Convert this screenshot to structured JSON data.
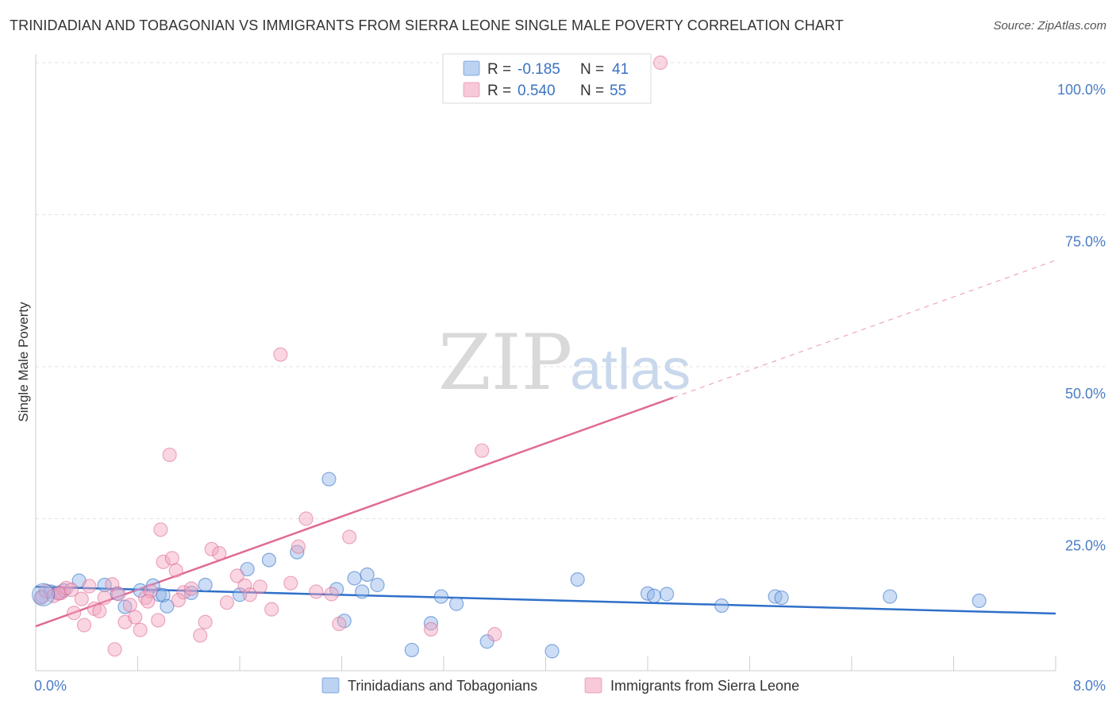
{
  "header": {
    "title": "TRINIDADIAN AND TOBAGONIAN VS IMMIGRANTS FROM SIERRA LEONE SINGLE MALE POVERTY CORRELATION CHART",
    "source": "Source: ZipAtlas.com"
  },
  "watermark": {
    "zip": "ZIP",
    "atlas": "atlas"
  },
  "legend_box": {
    "rows": [
      {
        "r_label": "R =",
        "r_value": "-0.185",
        "n_label": "N =",
        "n_value": "41",
        "color": "#8fb4e8"
      },
      {
        "r_label": "R =",
        "r_value": "0.540",
        "n_label": "N =",
        "n_value": "55",
        "color": "#f2a5bf"
      }
    ]
  },
  "chart_data": {
    "type": "scatter",
    "title": "TRINIDADIAN AND TOBAGONIAN VS IMMIGRANTS FROM SIERRA LEONE SINGLE MALE POVERTY CORRELATION CHART",
    "xlabel": "",
    "ylabel": "Single Male Poverty",
    "xlim": [
      0,
      8
    ],
    "ylim": [
      0,
      100
    ],
    "x_tick_labels": [
      "0.0%",
      "8.0%"
    ],
    "y_ticks": [
      25,
      50,
      75,
      100
    ],
    "y_tick_labels": [
      "25.0%",
      "50.0%",
      "75.0%",
      "100.0%"
    ],
    "grid": true,
    "legend_placement": "bottom",
    "series": [
      {
        "name": "Trinidadians and Tobagonians",
        "color": "#8fb4e8",
        "line_color": "#2f6fc9",
        "trend": {
          "x": [
            0,
            8
          ],
          "y": [
            13.8,
            9.4
          ],
          "dashed_extension": false
        },
        "points": [
          [
            0.05,
            12.2
          ],
          [
            0.12,
            13.0
          ],
          [
            0.18,
            12.8
          ],
          [
            0.22,
            13.2
          ],
          [
            0.34,
            14.8
          ],
          [
            0.54,
            14.1
          ],
          [
            0.64,
            12.7
          ],
          [
            0.82,
            13.2
          ],
          [
            0.92,
            14.0
          ],
          [
            0.97,
            12.5
          ],
          [
            1.0,
            12.4
          ],
          [
            1.03,
            10.6
          ],
          [
            1.22,
            12.8
          ],
          [
            1.33,
            14.1
          ],
          [
            1.66,
            16.7
          ],
          [
            1.83,
            18.2
          ],
          [
            2.05,
            19.5
          ],
          [
            2.3,
            31.5
          ],
          [
            2.36,
            13.4
          ],
          [
            2.42,
            8.2
          ],
          [
            2.5,
            15.2
          ],
          [
            2.56,
            13.0
          ],
          [
            2.6,
            15.8
          ],
          [
            2.68,
            14.1
          ],
          [
            2.95,
            3.4
          ],
          [
            3.1,
            7.8
          ],
          [
            3.18,
            12.2
          ],
          [
            3.3,
            11.0
          ],
          [
            3.54,
            4.8
          ],
          [
            4.05,
            3.2
          ],
          [
            4.25,
            15.0
          ],
          [
            4.8,
            12.7
          ],
          [
            4.85,
            12.3
          ],
          [
            4.95,
            12.6
          ],
          [
            5.38,
            10.7
          ],
          [
            5.8,
            12.2
          ],
          [
            5.85,
            12.0
          ],
          [
            6.7,
            12.2
          ],
          [
            7.4,
            11.5
          ],
          [
            0.7,
            10.5
          ],
          [
            1.6,
            12.5
          ]
        ]
      },
      {
        "name": "Immigrants from Sierra Leone",
        "color": "#f2a5bf",
        "line_color": "#e06a94",
        "trend": {
          "x": [
            0,
            8
          ],
          "y": [
            7.3,
            67.5
          ],
          "dashed_from_x": 5.0
        },
        "points": [
          [
            0.04,
            12.0
          ],
          [
            0.08,
            13.1
          ],
          [
            0.14,
            12.3
          ],
          [
            0.2,
            12.8
          ],
          [
            0.24,
            13.6
          ],
          [
            0.3,
            9.5
          ],
          [
            0.36,
            11.8
          ],
          [
            0.38,
            7.5
          ],
          [
            0.42,
            13.9
          ],
          [
            0.46,
            10.2
          ],
          [
            0.5,
            9.8
          ],
          [
            0.54,
            12.0
          ],
          [
            0.6,
            14.2
          ],
          [
            0.62,
            3.5
          ],
          [
            0.65,
            12.6
          ],
          [
            0.7,
            8.0
          ],
          [
            0.74,
            10.8
          ],
          [
            0.78,
            8.8
          ],
          [
            0.82,
            6.7
          ],
          [
            0.86,
            12.0
          ],
          [
            0.9,
            13.1
          ],
          [
            0.96,
            8.3
          ],
          [
            0.98,
            23.2
          ],
          [
            1.0,
            17.9
          ],
          [
            1.05,
            35.5
          ],
          [
            1.07,
            18.5
          ],
          [
            1.1,
            16.5
          ],
          [
            1.16,
            12.9
          ],
          [
            1.22,
            13.5
          ],
          [
            1.29,
            5.8
          ],
          [
            1.33,
            8.0
          ],
          [
            1.38,
            20.0
          ],
          [
            1.44,
            19.3
          ],
          [
            1.5,
            11.2
          ],
          [
            1.58,
            15.6
          ],
          [
            1.64,
            14.0
          ],
          [
            1.68,
            12.5
          ],
          [
            1.85,
            10.1
          ],
          [
            1.92,
            52.0
          ],
          [
            2.0,
            14.4
          ],
          [
            2.06,
            20.4
          ],
          [
            2.12,
            25.0
          ],
          [
            2.32,
            12.6
          ],
          [
            2.38,
            7.7
          ],
          [
            2.46,
            22.0
          ],
          [
            3.1,
            6.8
          ],
          [
            3.5,
            36.2
          ],
          [
            3.6,
            6.0
          ],
          [
            4.9,
            100.0
          ],
          [
            0.18,
            12.7
          ],
          [
            0.28,
            13.3
          ],
          [
            1.12,
            11.6
          ],
          [
            0.88,
            11.4
          ],
          [
            2.2,
            13.0
          ],
          [
            1.76,
            13.8
          ]
        ]
      }
    ]
  }
}
